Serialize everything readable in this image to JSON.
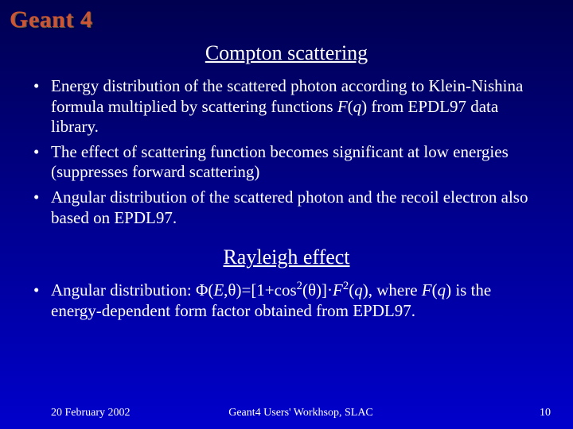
{
  "logo": "Geant 4",
  "section1": {
    "title": "Compton scattering",
    "bullets": [
      {
        "html": "Energy distribution of the scattered photon according to Klein-Nishina formula multiplied by scattering functions <span class='italic'>F</span>(<span class='italic'>q</span>) from EPDL97 data library."
      },
      {
        "html": "The effect of scattering function becomes significant at low energies (suppresses forward scattering)"
      },
      {
        "html": "Angular distribution of the scattered photon and the recoil electron also based on EPDL97."
      }
    ]
  },
  "section2": {
    "title": "Rayleigh effect",
    "bullets": [
      {
        "html": "Angular distribution: &Phi;(<span class='italic'>E</span>,&theta;)=[1+cos<sup>2</sup>(&theta;)]&middot;<span class='italic'>F</span><sup>2</sup>(<span class='italic'>q</span>), where <span class='italic'>F</span>(<span class='italic'>q</span>) is the energy-dependent form factor obtained from EPDL97."
      }
    ]
  },
  "footer": {
    "date": "20 February 2002",
    "venue": "Geant4 Users' Workhsop, SLAC",
    "page": "10"
  },
  "colors": {
    "logo": "#cc5533",
    "text": "#ffffff",
    "bg_top": "#000050",
    "bg_bottom": "#0000cc"
  },
  "typography": {
    "logo_size": 30,
    "heading_size": 26,
    "body_size": 21,
    "footer_size": 14,
    "font_family": "Times New Roman"
  }
}
